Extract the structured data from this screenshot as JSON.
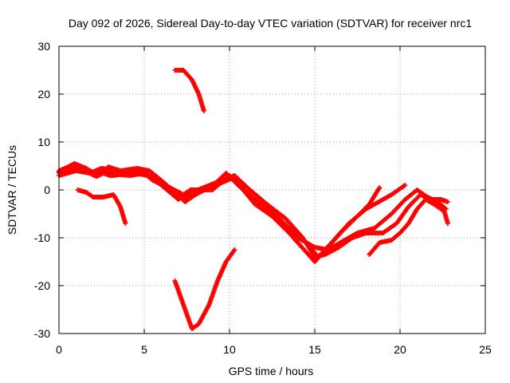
{
  "chart_data": {
    "type": "scatter",
    "title": "Day 092 of 2026, Sidereal Day-to-day VTEC variation (SDTVAR) for receiver nrc1",
    "xlabel": "GPS time / hours",
    "ylabel": "SDTVAR / TECUs",
    "xlim": [
      0,
      25
    ],
    "ylim": [
      -30,
      30
    ],
    "xticks": [
      0,
      5,
      10,
      15,
      20,
      25
    ],
    "yticks": [
      -30,
      -20,
      -10,
      0,
      10,
      20,
      30
    ],
    "xtick_labels": [
      "0",
      "5",
      "10",
      "15",
      "20",
      "25"
    ],
    "ytick_labels": [
      "-30",
      "-20",
      "-10",
      "0",
      "10",
      "20",
      "30"
    ],
    "grid": true,
    "marker": "+",
    "color": "#ff0000",
    "series": [
      {
        "name": "trace-1",
        "points": [
          [
            0,
            3.5
          ],
          [
            0.8,
            4.5
          ],
          [
            1.5,
            4
          ],
          [
            2.2,
            2.8
          ],
          [
            2.6,
            3.5
          ],
          [
            3,
            3
          ],
          [
            3.5,
            3.2
          ],
          [
            4.2,
            3
          ],
          [
            5,
            3.5
          ],
          [
            5.5,
            2
          ],
          [
            6.5,
            0.5
          ],
          [
            7.3,
            -1
          ],
          [
            7.7,
            0
          ],
          [
            8.2,
            0
          ],
          [
            9,
            0
          ],
          [
            9.5,
            1.5
          ],
          [
            10,
            3
          ],
          [
            10.8,
            0
          ],
          [
            11.5,
            -3
          ],
          [
            12.5,
            -5.5
          ],
          [
            13.5,
            -9
          ],
          [
            14.5,
            -13
          ],
          [
            15,
            -15
          ],
          [
            15.5,
            -13
          ],
          [
            16.5,
            -9
          ],
          [
            17.5,
            -5.5
          ],
          [
            18.2,
            -3
          ],
          [
            18.8,
            0.5
          ]
        ]
      },
      {
        "name": "trace-2",
        "points": [
          [
            0,
            4
          ],
          [
            0.7,
            5
          ],
          [
            1.3,
            4.5
          ],
          [
            2,
            3.5
          ],
          [
            2.6,
            4.5
          ],
          [
            3.3,
            3.5
          ],
          [
            4.5,
            3.5
          ],
          [
            5.2,
            3
          ],
          [
            5.8,
            1.5
          ],
          [
            6.8,
            -0.5
          ],
          [
            7.3,
            -2
          ],
          [
            7.8,
            -0.5
          ],
          [
            8.5,
            0.5
          ],
          [
            9.2,
            1.5
          ],
          [
            9.8,
            3.5
          ],
          [
            10.5,
            1
          ],
          [
            11.5,
            -2
          ],
          [
            12.5,
            -4.5
          ],
          [
            13.5,
            -8
          ],
          [
            14.5,
            -11
          ],
          [
            15.2,
            -14
          ],
          [
            16,
            -11
          ],
          [
            17,
            -7
          ],
          [
            18,
            -4
          ],
          [
            19,
            -2
          ],
          [
            19.5,
            -1
          ],
          [
            20.3,
            1
          ]
        ]
      },
      {
        "name": "trace-3",
        "points": [
          [
            0,
            3
          ],
          [
            1,
            4
          ],
          [
            1.8,
            3.5
          ],
          [
            2.5,
            4.5
          ],
          [
            3.2,
            3
          ],
          [
            4,
            3.5
          ],
          [
            4.8,
            4
          ],
          [
            5.5,
            2.5
          ],
          [
            6.5,
            -0.5
          ],
          [
            7,
            -2
          ],
          [
            7.6,
            -0.5
          ],
          [
            8.3,
            0
          ],
          [
            9.2,
            1
          ],
          [
            10.2,
            2.5
          ],
          [
            11,
            -0.5
          ],
          [
            12,
            -3.5
          ],
          [
            13,
            -6.5
          ],
          [
            14,
            -10
          ],
          [
            15,
            -12
          ],
          [
            15.8,
            -12.5
          ],
          [
            16.5,
            -11
          ],
          [
            17.5,
            -9
          ],
          [
            18.5,
            -8
          ],
          [
            19.5,
            -5
          ],
          [
            20.3,
            -2
          ],
          [
            21,
            0
          ],
          [
            21.6,
            -1.5
          ],
          [
            22.2,
            -2.5
          ],
          [
            22.7,
            -4
          ]
        ]
      },
      {
        "name": "trace-4",
        "points": [
          [
            0,
            3.8
          ],
          [
            0.9,
            5.5
          ],
          [
            1.6,
            4.5
          ],
          [
            2.3,
            3
          ],
          [
            2.9,
            4.8
          ],
          [
            3.6,
            4
          ],
          [
            4.6,
            4.5
          ],
          [
            5.3,
            4
          ],
          [
            6,
            2
          ],
          [
            6.8,
            -0.5
          ],
          [
            7.4,
            -2.5
          ],
          [
            8,
            -1
          ],
          [
            8.8,
            0.5
          ],
          [
            9.6,
            2
          ],
          [
            10.3,
            3
          ],
          [
            11.2,
            0
          ],
          [
            12.2,
            -3
          ],
          [
            13.3,
            -6
          ],
          [
            14.3,
            -10
          ],
          [
            15,
            -14
          ],
          [
            15.6,
            -13.5
          ],
          [
            16.4,
            -12
          ],
          [
            17.2,
            -10
          ],
          [
            18,
            -9
          ],
          [
            19,
            -9
          ],
          [
            19.8,
            -7
          ],
          [
            20.5,
            -3.5
          ],
          [
            21.2,
            -1
          ],
          [
            21.8,
            -2
          ],
          [
            22.4,
            -2
          ],
          [
            22.8,
            -2.5
          ]
        ]
      },
      {
        "name": "trace-5",
        "points": [
          [
            1.1,
            0
          ],
          [
            1.6,
            -0.5
          ],
          [
            2,
            -1.5
          ],
          [
            2.6,
            -1.5
          ],
          [
            3.2,
            -1
          ],
          [
            3.6,
            -3.5
          ],
          [
            3.9,
            -7
          ]
        ]
      },
      {
        "name": "trace-6",
        "points": [
          [
            6.8,
            25
          ],
          [
            7.3,
            25
          ],
          [
            7.8,
            23
          ],
          [
            8.2,
            20
          ],
          [
            8.5,
            16.5
          ]
        ]
      },
      {
        "name": "trace-7",
        "points": [
          [
            6.8,
            -19
          ],
          [
            7.3,
            -24
          ],
          [
            7.8,
            -29
          ],
          [
            8.2,
            -28
          ],
          [
            8.8,
            -24
          ],
          [
            9.3,
            -19
          ],
          [
            9.8,
            -15
          ],
          [
            10.3,
            -12.5
          ]
        ]
      },
      {
        "name": "trace-8",
        "points": [
          [
            18.2,
            -13.5
          ],
          [
            18.8,
            -11
          ],
          [
            19.5,
            -10.5
          ],
          [
            20,
            -9
          ],
          [
            20.5,
            -7
          ],
          [
            21,
            -4
          ],
          [
            21.5,
            -2
          ],
          [
            22,
            -3
          ],
          [
            22.6,
            -4.5
          ],
          [
            22.8,
            -7
          ]
        ]
      }
    ]
  }
}
